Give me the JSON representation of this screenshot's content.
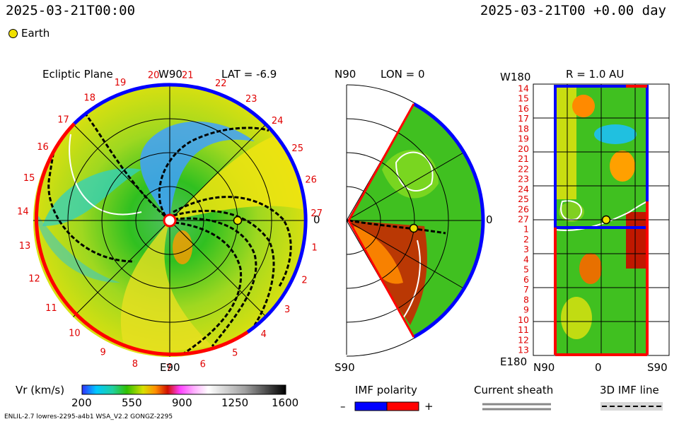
{
  "header": {
    "left_time": "2025-03-21T00:00",
    "right_time": "2025-03-21T00 +0.00 day",
    "body_label": "Earth",
    "body_color": "#f0e000"
  },
  "panels": {
    "ecliptic": {
      "title": "Ecliptic Plane",
      "top_label": "W90",
      "bottom_label": "E90",
      "right_label": "0",
      "lat_label": "LAT = -6.9",
      "carrington_labels": [
        "27",
        "1",
        "2",
        "3",
        "4",
        "5",
        "6",
        "7",
        "8",
        "9",
        "10",
        "11",
        "12",
        "13",
        "14",
        "15",
        "16",
        "17",
        "18",
        "19",
        "20",
        "21",
        "22",
        "23",
        "24",
        "25",
        "26"
      ]
    },
    "meridional": {
      "top_label": "N90",
      "bottom_label": "S90",
      "lon_label": "LON = 0",
      "right_label": "0"
    },
    "synoptic": {
      "top_label": "W180",
      "bottom_label": "E180",
      "r_label": "R = 1.0 AU",
      "y_labels": [
        "14",
        "15",
        "16",
        "17",
        "18",
        "19",
        "20",
        "21",
        "22",
        "23",
        "24",
        "25",
        "26",
        "27",
        "1",
        "2",
        "3",
        "4",
        "5",
        "6",
        "7",
        "8",
        "9",
        "10",
        "11",
        "12",
        "13"
      ],
      "x_labels": [
        "N90",
        "0",
        "S90"
      ]
    }
  },
  "legend": {
    "vr_label": "Vr (km/s)",
    "vr_ticks": [
      "200",
      "550",
      "900",
      "1250",
      "1600"
    ],
    "imf_title": "IMF polarity",
    "imf_minus": "–",
    "imf_plus": "+",
    "sheath_title": "Current sheath",
    "imf_line_title": "3D IMF line",
    "polarity_colors": {
      "negative": "#0000ff",
      "positive": "#ff0000"
    }
  },
  "footer": {
    "model_info": "ENLIL-2.7 lowres-2295-a4b1 WSA_V2.2 GONGZ-2295"
  },
  "chart_data": {
    "type": "heatmap",
    "variable": "Vr (km/s)",
    "colorbar_range": [
      200,
      1600
    ],
    "colorbar_ticks": [
      200,
      550,
      900,
      1250,
      1600
    ],
    "earth": {
      "lon_deg": 0,
      "lat_deg": -6.9,
      "r_au": 1.0
    },
    "imf_polarity_ecliptic_boundary": [
      {
        "from_label": "17",
        "to_label": "24",
        "polarity": "negative"
      },
      {
        "from_label": "24",
        "to_label": "5",
        "polarity": "negative"
      },
      {
        "from_label": "5",
        "to_label": "17",
        "polarity": "positive"
      }
    ]
  }
}
